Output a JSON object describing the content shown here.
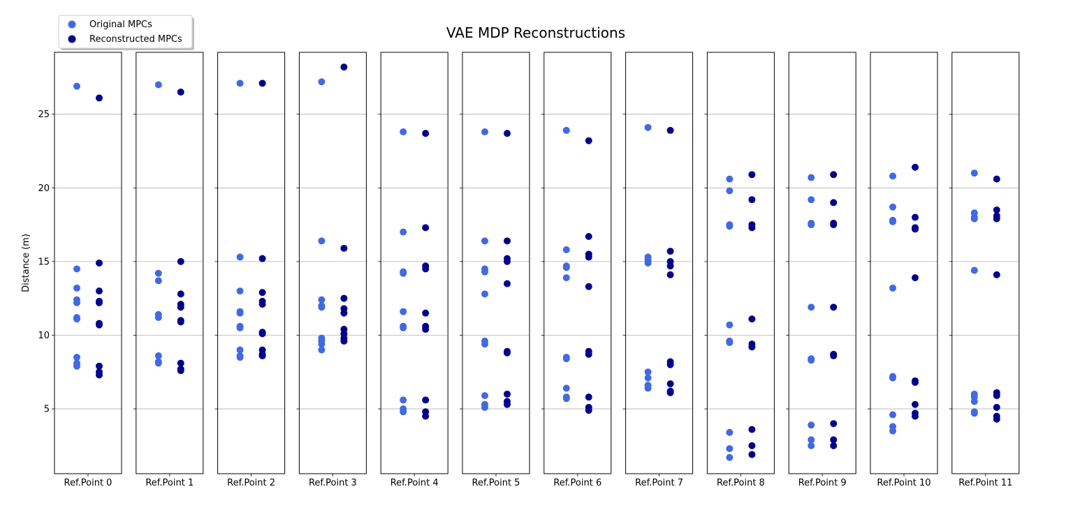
{
  "chart_data": {
    "type": "scatter",
    "title": "VAE MDP Reconstructions",
    "ylabel": "Distance (m)",
    "xlabel": "",
    "ylim": [
      0.6,
      29.2
    ],
    "yticks": [
      5,
      10,
      15,
      20,
      25
    ],
    "grid": "horizontal",
    "legend": {
      "placement": "top-left"
    },
    "series": [
      {
        "name": "Original MPCs",
        "color": "#4169E1"
      },
      {
        "name": "Reconstructed MPCs",
        "color": "#00008B"
      }
    ],
    "panels": [
      {
        "label": "Ref.Point 0",
        "original": [
          26.9,
          14.5,
          13.2,
          12.4,
          12.2,
          11.2,
          11.1,
          8.5,
          8.1,
          7.9
        ],
        "reconstructed": [
          26.1,
          14.9,
          13.0,
          12.3,
          12.2,
          10.8,
          10.7,
          7.9,
          7.5,
          7.3
        ]
      },
      {
        "label": "Ref.Point 1",
        "original": [
          27.0,
          14.2,
          13.7,
          11.4,
          11.2,
          8.6,
          8.2,
          8.1
        ],
        "reconstructed": [
          26.5,
          15.0,
          12.8,
          12.1,
          11.9,
          11.0,
          10.9,
          8.1,
          7.7,
          7.6
        ]
      },
      {
        "label": "Ref.Point 2",
        "original": [
          27.1,
          15.3,
          13.0,
          11.6,
          11.5,
          10.6,
          10.5,
          9.0,
          8.6,
          8.5
        ],
        "reconstructed": [
          27.1,
          15.2,
          12.9,
          12.3,
          12.1,
          10.2,
          10.1,
          9.0,
          8.7,
          8.6
        ]
      },
      {
        "label": "Ref.Point 3",
        "original": [
          27.2,
          16.4,
          12.4,
          12.0,
          11.9,
          9.8,
          9.6,
          9.4,
          9.0
        ],
        "reconstructed": [
          28.2,
          15.9,
          12.5,
          11.8,
          11.5,
          10.4,
          10.1,
          9.8,
          9.6
        ]
      },
      {
        "label": "Ref.Point 4",
        "original": [
          23.8,
          17.0,
          14.3,
          14.2,
          11.6,
          10.6,
          10.5,
          5.6,
          5.0,
          4.8
        ],
        "reconstructed": [
          23.7,
          17.3,
          14.7,
          14.5,
          11.5,
          10.6,
          10.4,
          5.6,
          4.8,
          4.5
        ]
      },
      {
        "label": "Ref.Point 5",
        "original": [
          23.8,
          16.4,
          14.5,
          14.3,
          12.8,
          9.6,
          9.4,
          5.9,
          5.3,
          5.1
        ],
        "reconstructed": [
          23.7,
          16.4,
          15.2,
          15.0,
          13.5,
          8.9,
          8.8,
          6.0,
          5.5,
          5.3
        ]
      },
      {
        "label": "Ref.Point 6",
        "original": [
          23.9,
          15.8,
          14.7,
          14.6,
          13.9,
          8.5,
          8.4,
          6.4,
          5.8,
          5.7
        ],
        "reconstructed": [
          23.2,
          16.7,
          15.5,
          15.3,
          13.3,
          8.9,
          8.7,
          5.8,
          5.1,
          4.9
        ]
      },
      {
        "label": "Ref.Point 7",
        "original": [
          24.1,
          15.3,
          15.1,
          14.9,
          7.5,
          7.1,
          6.6,
          6.4
        ],
        "reconstructed": [
          23.9,
          15.7,
          15.0,
          14.7,
          14.1,
          8.2,
          8.0,
          6.7,
          6.2,
          6.1
        ]
      },
      {
        "label": "Ref.Point 8",
        "original": [
          20.6,
          19.8,
          17.5,
          17.4,
          10.7,
          9.6,
          9.5,
          3.4,
          2.3,
          1.7
        ],
        "reconstructed": [
          20.9,
          19.2,
          17.5,
          17.3,
          11.1,
          9.4,
          9.2,
          3.6,
          2.5,
          1.9
        ]
      },
      {
        "label": "Ref.Point 9",
        "original": [
          20.7,
          19.2,
          17.6,
          17.5,
          11.9,
          8.4,
          8.3,
          3.9,
          2.9,
          2.5
        ],
        "reconstructed": [
          20.9,
          19.0,
          17.6,
          17.5,
          11.9,
          8.7,
          8.6,
          4.0,
          2.9,
          2.5
        ]
      },
      {
        "label": "Ref.Point 10",
        "original": [
          20.8,
          18.7,
          17.8,
          17.7,
          13.2,
          7.2,
          7.1,
          4.6,
          3.8,
          3.5
        ],
        "reconstructed": [
          21.4,
          18.0,
          17.3,
          17.2,
          13.9,
          6.9,
          6.8,
          5.3,
          4.7,
          4.5
        ]
      },
      {
        "label": "Ref.Point 11",
        "original": [
          21.0,
          18.3,
          18.0,
          17.9,
          14.4,
          6.0,
          5.8,
          5.5,
          4.8,
          4.7
        ],
        "reconstructed": [
          20.6,
          18.5,
          18.1,
          17.9,
          14.1,
          6.1,
          5.9,
          5.1,
          4.5,
          4.3
        ]
      }
    ]
  }
}
